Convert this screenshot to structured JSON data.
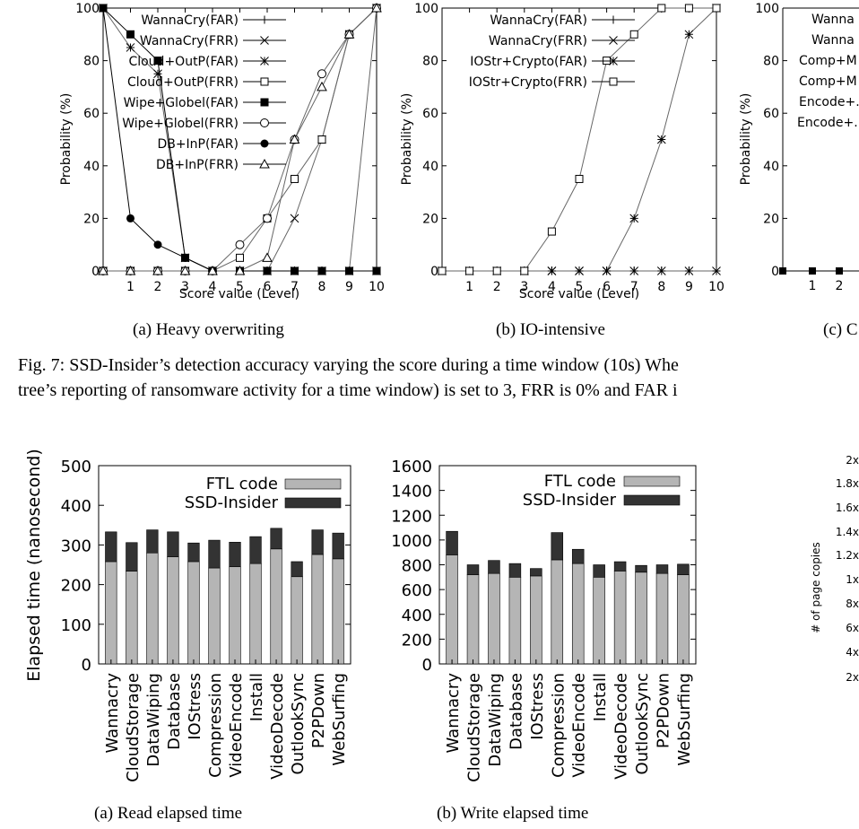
{
  "top_row": {
    "y_axis_label": "Probability (%)",
    "x_axis_label": "Score value (Level)",
    "y_ticks": [
      "0",
      "20",
      "40",
      "60",
      "80",
      "100"
    ],
    "x_ticks": [
      "1",
      "2",
      "3",
      "4",
      "5",
      "6",
      "7",
      "8",
      "9",
      "10"
    ],
    "captions": [
      "(a) Heavy overwriting",
      "(b) IO-intensive",
      "(c) C"
    ],
    "chart_c_legend": [
      "Wanna",
      "Wanna",
      "Comp+M",
      "Comp+M",
      "Encode+.",
      "Encode+."
    ],
    "chart_c_x_ticks": [
      "1",
      "2"
    ]
  },
  "fig7_caption": {
    "line1": "Fig. 7: SSD-Insider’s detection accuracy varying the score during a time window (10s) Whe",
    "line2": "tree’s reporting of ransomware activity for a time window) is set to 3, FRR is 0% and FAR i"
  },
  "bottom_row": {
    "y_axis_label": "Elapsed time (nanosecond)",
    "legend": [
      "FTL code",
      "SSD-Insider"
    ],
    "captions": [
      "(a) Read elapsed time",
      "(b) Write elapsed time"
    ],
    "right_partial": {
      "y_label": "# of page copies",
      "ticks": [
        "2x",
        "1.8x",
        "1.6x",
        "1.4x",
        "1.2x",
        "1x",
        "8x",
        "6x",
        "4x",
        "2x"
      ]
    }
  },
  "chart_data": [
    {
      "type": "line",
      "title": "",
      "xlabel": "Score value (Level)",
      "ylabel": "Probability (%)",
      "xlim": [
        0,
        10
      ],
      "ylim": [
        0,
        100
      ],
      "x": [
        0,
        1,
        2,
        3,
        4,
        5,
        6,
        7,
        8,
        9,
        10
      ],
      "series": [
        {
          "name": "WannaCry(FAR)",
          "marker": "plus",
          "values": [
            0,
            0,
            0,
            0,
            0,
            0,
            0,
            0,
            0,
            0,
            100
          ]
        },
        {
          "name": "WannaCry(FRR)",
          "marker": "x",
          "values": [
            0,
            0,
            0,
            0,
            0,
            0,
            0,
            20,
            50,
            90,
            100
          ]
        },
        {
          "name": "Cloud+OutP(FAR)",
          "marker": "star",
          "values": [
            100,
            85,
            75,
            5,
            0,
            0,
            0,
            0,
            0,
            0,
            0
          ]
        },
        {
          "name": "Cloud+OutP(FRR)",
          "marker": "square-open",
          "values": [
            0,
            0,
            0,
            0,
            0,
            5,
            20,
            35,
            50,
            90,
            100
          ]
        },
        {
          "name": "Wipe+Globel(FAR)",
          "marker": "square-filled",
          "values": [
            100,
            90,
            80,
            5,
            0,
            0,
            0,
            0,
            0,
            0,
            0
          ]
        },
        {
          "name": "Wipe+Globel(FRR)",
          "marker": "circle-open",
          "values": [
            0,
            0,
            0,
            0,
            0,
            10,
            20,
            50,
            75,
            90,
            100
          ]
        },
        {
          "name": "DB+InP(FAR)",
          "marker": "circle-filled",
          "values": [
            100,
            20,
            10,
            5,
            0,
            0,
            0,
            0,
            0,
            0,
            0
          ]
        },
        {
          "name": "DB+InP(FRR)",
          "marker": "triangle-open",
          "values": [
            0,
            0,
            0,
            0,
            0,
            0,
            5,
            50,
            70,
            90,
            100
          ]
        }
      ]
    },
    {
      "type": "line",
      "title": "",
      "xlabel": "Score value (Level)",
      "ylabel": "Probability (%)",
      "xlim": [
        0,
        10
      ],
      "ylim": [
        0,
        100
      ],
      "x": [
        0,
        1,
        2,
        3,
        4,
        5,
        6,
        7,
        8,
        9,
        10
      ],
      "series": [
        {
          "name": "WannaCry(FAR)",
          "marker": "plus",
          "values": [
            0,
            0,
            0,
            0,
            0,
            0,
            0,
            0,
            0,
            0,
            0
          ]
        },
        {
          "name": "WannaCry(FRR)",
          "marker": "x",
          "values": [
            0,
            0,
            0,
            0,
            0,
            0,
            0,
            0,
            0,
            0,
            0
          ]
        },
        {
          "name": "IOStr+Crypto(FAR)",
          "marker": "star",
          "values": [
            0,
            0,
            0,
            0,
            0,
            0,
            0,
            20,
            50,
            90,
            100
          ]
        },
        {
          "name": "IOStr+Crypto(FRR)",
          "marker": "square-open",
          "values": [
            0,
            0,
            0,
            0,
            15,
            35,
            80,
            90,
            100,
            100,
            100
          ]
        }
      ]
    },
    {
      "type": "bar",
      "title": "",
      "ylabel": "Elapsed time (nanosecond)",
      "ylim": [
        0,
        500
      ],
      "y_ticks": [
        0,
        100,
        200,
        300,
        400,
        500
      ],
      "stacked": true,
      "categories": [
        "Wannacry",
        "CloudStorage",
        "DataWiping",
        "Database",
        "IOStress",
        "Compression",
        "VideoEncode",
        "Install",
        "VideoDecode",
        "OutlookSync",
        "P2PDown",
        "WebSurfing"
      ],
      "series": [
        {
          "name": "FTL code",
          "color": "#b5b5b5",
          "values": [
            258,
            234,
            280,
            270,
            258,
            242,
            245,
            253,
            290,
            220,
            276,
            265
          ]
        },
        {
          "name": "SSD-Insider",
          "color": "#333333",
          "values": [
            75,
            72,
            58,
            63,
            47,
            70,
            62,
            68,
            52,
            38,
            62,
            65
          ]
        }
      ]
    },
    {
      "type": "bar",
      "title": "",
      "ylim": [
        0,
        1600
      ],
      "y_ticks": [
        0,
        200,
        400,
        600,
        800,
        1000,
        1200,
        1400,
        1600
      ],
      "stacked": true,
      "categories": [
        "Wannacry",
        "CloudStorage",
        "DataWiping",
        "Database",
        "IOStress",
        "Compression",
        "VideoEncode",
        "Install",
        "VideoDecode",
        "OutlookSync",
        "P2PDown",
        "WebSurfing"
      ],
      "series": [
        {
          "name": "FTL code",
          "color": "#b5b5b5",
          "values": [
            880,
            720,
            730,
            700,
            710,
            840,
            810,
            700,
            750,
            740,
            730,
            720
          ]
        },
        {
          "name": "SSD-Insider",
          "color": "#333333",
          "values": [
            190,
            80,
            105,
            110,
            60,
            220,
            115,
            100,
            75,
            55,
            70,
            85
          ]
        }
      ]
    }
  ]
}
